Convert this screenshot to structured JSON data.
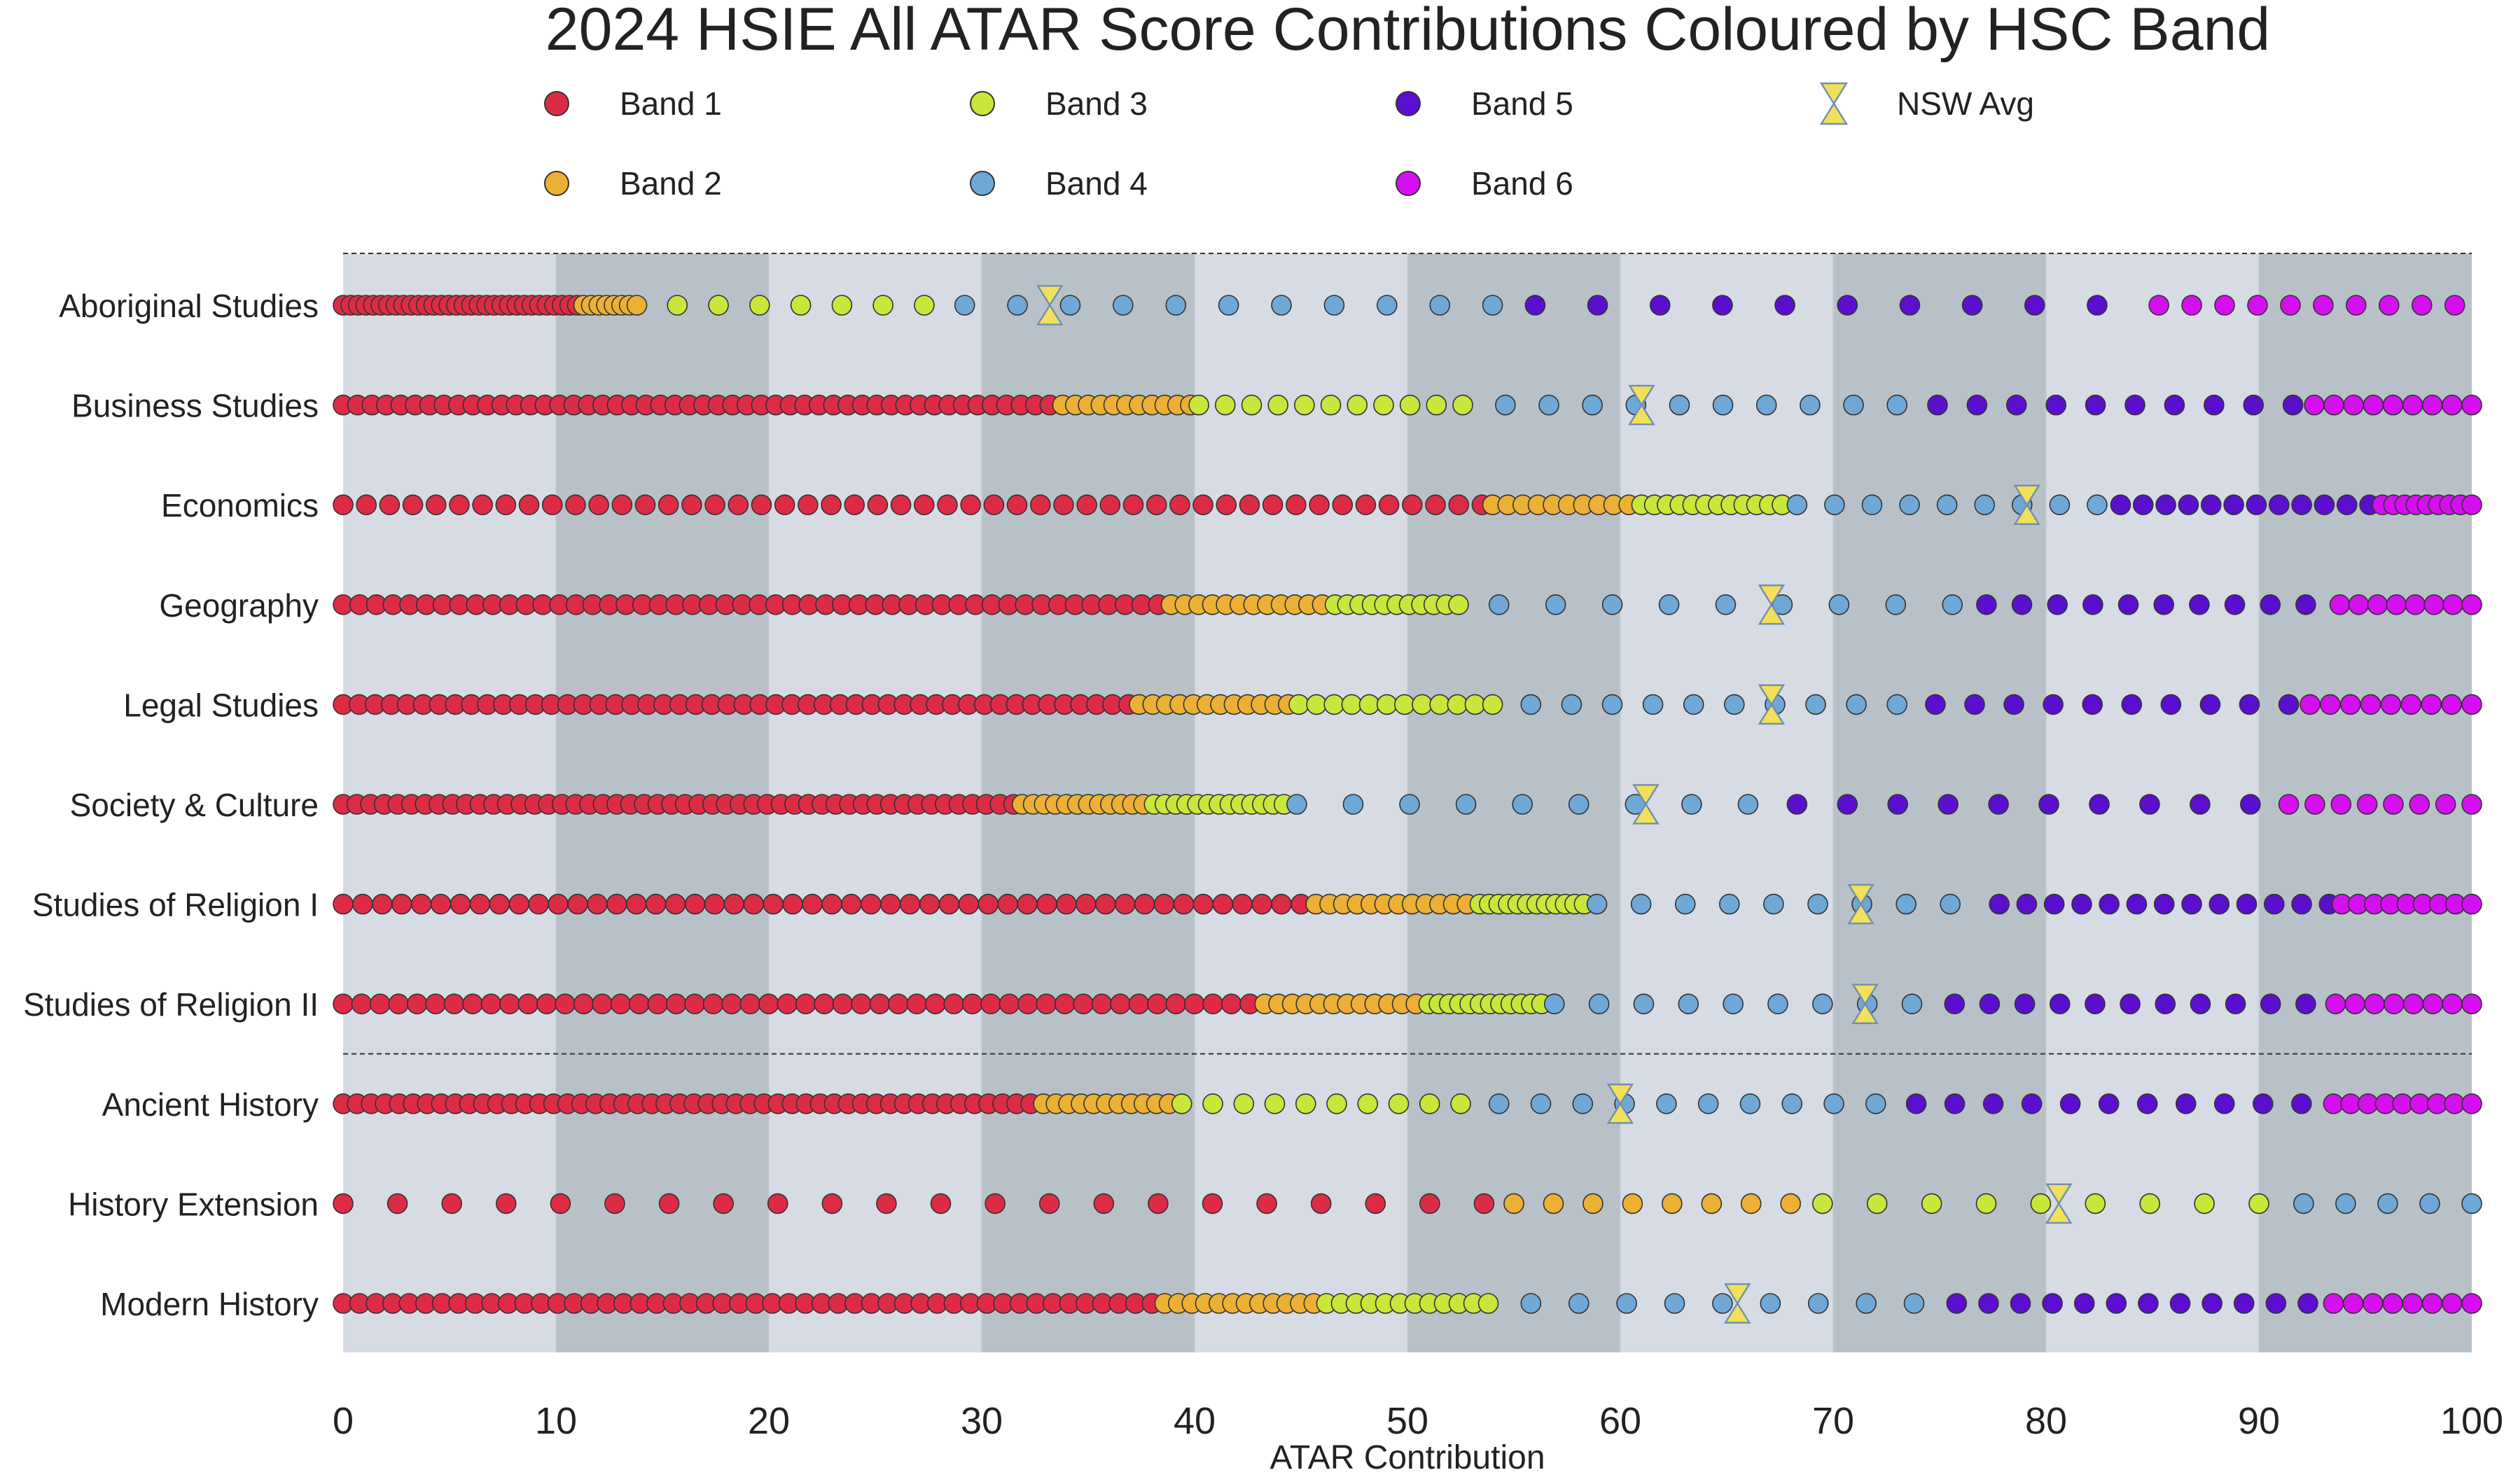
{
  "chart_data": {
    "type": "scatter",
    "title": "2024 HSIE All ATAR Score Contributions Coloured by HSC Band",
    "xlabel": "ATAR Contribution",
    "ylabel": "",
    "xlim": [
      0,
      100
    ],
    "xticks": [
      "0",
      "10",
      "20",
      "30",
      "40",
      "50",
      "60",
      "70",
      "80",
      "90",
      "100"
    ],
    "grid": "alternating vertical bands every 10 units",
    "legend_placement": "top",
    "colors": {
      "Band 1": "#de2b45",
      "Band 2": "#ecb034",
      "Band 3": "#c9e63a",
      "Band 4": "#6fa8d6",
      "Band 5": "#5a0fcf",
      "Band 6": "#d50ff0",
      "NSW Avg": "#f2e05a",
      "shade_light": "#d7dbe3",
      "shade_dark": "#b9c1c8"
    },
    "legend": [
      {
        "label": "Band 1",
        "marker": "circle",
        "color": "#de2b45"
      },
      {
        "label": "Band 3",
        "marker": "circle",
        "color": "#c9e63a"
      },
      {
        "label": "Band 5",
        "marker": "circle",
        "color": "#5a0fcf"
      },
      {
        "label": "NSW Avg",
        "marker": "hourglass",
        "color": "#f2e05a"
      },
      {
        "label": "Band 2",
        "marker": "circle",
        "color": "#ecb034"
      },
      {
        "label": "Band 4",
        "marker": "circle",
        "color": "#6fa8d6"
      },
      {
        "label": "Band 6",
        "marker": "circle",
        "color": "#d50ff0"
      }
    ],
    "group_separators_after_row": [
      -1,
      7
    ],
    "series": [
      {
        "name": "Aboriginal Studies",
        "nsw_avg": 33.2,
        "segments": [
          {
            "band": 1,
            "from": 0,
            "to": 11,
            "n": 32
          },
          {
            "band": 2,
            "from": 11.3,
            "to": 13.8,
            "n": 8
          },
          {
            "band": 3,
            "from": 15.7,
            "to": 27.3,
            "n": 7
          },
          {
            "band": 4,
            "from": 29.2,
            "to": 54.0,
            "n": 11
          },
          {
            "band": 5,
            "from": 56.0,
            "to": 82.4,
            "n": 10
          },
          {
            "band": 6,
            "from": 85.3,
            "to": 99.2,
            "n": 10
          }
        ]
      },
      {
        "name": "Business Studies",
        "nsw_avg": 61.0,
        "segments": [
          {
            "band": 1,
            "from": 0,
            "to": 33.2,
            "n": 50
          },
          {
            "band": 2,
            "from": 33.8,
            "to": 39.8,
            "n": 11
          },
          {
            "band": 3,
            "from": 40.2,
            "to": 52.6,
            "n": 11
          },
          {
            "band": 4,
            "from": 54.6,
            "to": 73.0,
            "n": 10
          },
          {
            "band": 5,
            "from": 74.9,
            "to": 91.6,
            "n": 10
          },
          {
            "band": 6,
            "from": 92.6,
            "to": 100,
            "n": 9
          }
        ]
      },
      {
        "name": "Economics",
        "nsw_avg": 79.1,
        "segments": [
          {
            "band": 1,
            "from": 0,
            "to": 53.5,
            "n": 50
          },
          {
            "band": 2,
            "from": 54.0,
            "to": 60.4,
            "n": 10
          },
          {
            "band": 3,
            "from": 61.0,
            "to": 67.6,
            "n": 12
          },
          {
            "band": 4,
            "from": 68.3,
            "to": 82.4,
            "n": 9
          },
          {
            "band": 5,
            "from": 83.5,
            "to": 95.2,
            "n": 12
          },
          {
            "band": 6,
            "from": 95.8,
            "to": 100,
            "n": 9
          }
        ]
      },
      {
        "name": "Geography",
        "nsw_avg": 67.1,
        "segments": [
          {
            "band": 1,
            "from": 0,
            "to": 38.3,
            "n": 50
          },
          {
            "band": 2,
            "from": 38.9,
            "to": 46.0,
            "n": 12
          },
          {
            "band": 3,
            "from": 46.6,
            "to": 52.4,
            "n": 11
          },
          {
            "band": 4,
            "from": 54.3,
            "to": 75.6,
            "n": 9
          },
          {
            "band": 5,
            "from": 77.2,
            "to": 92.2,
            "n": 10
          },
          {
            "band": 6,
            "from": 93.8,
            "to": 100,
            "n": 8
          }
        ]
      },
      {
        "name": "Legal Studies",
        "nsw_avg": 67.1,
        "segments": [
          {
            "band": 1,
            "from": 0,
            "to": 36.9,
            "n": 50
          },
          {
            "band": 2,
            "from": 37.4,
            "to": 44.4,
            "n": 12
          },
          {
            "band": 3,
            "from": 44.9,
            "to": 54.0,
            "n": 12
          },
          {
            "band": 4,
            "from": 55.8,
            "to": 73.0,
            "n": 10
          },
          {
            "band": 5,
            "from": 74.8,
            "to": 91.4,
            "n": 10
          },
          {
            "band": 6,
            "from": 92.4,
            "to": 100,
            "n": 9
          }
        ]
      },
      {
        "name": "Society & Culture",
        "nsw_avg": 61.2,
        "segments": [
          {
            "band": 1,
            "from": 0,
            "to": 31.5,
            "n": 50
          },
          {
            "band": 2,
            "from": 31.9,
            "to": 37.6,
            "n": 12
          },
          {
            "band": 3,
            "from": 38.1,
            "to": 44.2,
            "n": 13
          },
          {
            "band": 4,
            "from": 44.8,
            "to": 66.0,
            "n": 9
          },
          {
            "band": 5,
            "from": 68.3,
            "to": 89.6,
            "n": 10
          },
          {
            "band": 6,
            "from": 91.4,
            "to": 100,
            "n": 8
          }
        ]
      },
      {
        "name": "Studies of Religion I",
        "nsw_avg": 71.3,
        "segments": [
          {
            "band": 1,
            "from": 0,
            "to": 45.0,
            "n": 50
          },
          {
            "band": 2,
            "from": 45.7,
            "to": 52.8,
            "n": 12
          },
          {
            "band": 3,
            "from": 53.4,
            "to": 58.3,
            "n": 12
          },
          {
            "band": 4,
            "from": 58.9,
            "to": 75.5,
            "n": 9
          },
          {
            "band": 5,
            "from": 77.8,
            "to": 93.3,
            "n": 13
          },
          {
            "band": 6,
            "from": 93.9,
            "to": 100,
            "n": 9
          }
        ]
      },
      {
        "name": "Studies of Religion II",
        "nsw_avg": 71.5,
        "segments": [
          {
            "band": 1,
            "from": 0,
            "to": 42.6,
            "n": 50
          },
          {
            "band": 2,
            "from": 43.3,
            "to": 50.4,
            "n": 12
          },
          {
            "band": 3,
            "from": 51.0,
            "to": 56.3,
            "n": 12
          },
          {
            "band": 4,
            "from": 56.9,
            "to": 73.7,
            "n": 9
          },
          {
            "band": 5,
            "from": 75.7,
            "to": 92.2,
            "n": 11
          },
          {
            "band": 6,
            "from": 93.6,
            "to": 100,
            "n": 8
          }
        ]
      },
      {
        "name": "Ancient History",
        "nsw_avg": 60.0,
        "segments": [
          {
            "band": 1,
            "from": 0,
            "to": 32.3,
            "n": 50
          },
          {
            "band": 2,
            "from": 32.9,
            "to": 38.8,
            "n": 11
          },
          {
            "band": 3,
            "from": 39.4,
            "to": 52.5,
            "n": 10
          },
          {
            "band": 4,
            "from": 54.3,
            "to": 72.0,
            "n": 10
          },
          {
            "band": 5,
            "from": 73.9,
            "to": 92.0,
            "n": 11
          },
          {
            "band": 6,
            "from": 93.5,
            "to": 100,
            "n": 9
          }
        ]
      },
      {
        "name": "History Extension",
        "nsw_avg": 80.6,
        "segments": [
          {
            "band": 1,
            "from": 0,
            "to": 53.6,
            "n": 22
          },
          {
            "band": 2,
            "from": 55.0,
            "to": 68.0,
            "n": 8
          },
          {
            "band": 3,
            "from": 69.5,
            "to": 90.0,
            "n": 9
          },
          {
            "band": 4,
            "from": 92.1,
            "to": 100,
            "n": 5
          }
        ]
      },
      {
        "name": "Modern History",
        "nsw_avg": 65.5,
        "segments": [
          {
            "band": 1,
            "from": 0,
            "to": 38.0,
            "n": 50
          },
          {
            "band": 2,
            "from": 38.6,
            "to": 45.6,
            "n": 12
          },
          {
            "band": 3,
            "from": 46.2,
            "to": 53.8,
            "n": 12
          },
          {
            "band": 4,
            "from": 55.8,
            "to": 73.8,
            "n": 9
          },
          {
            "band": 5,
            "from": 75.8,
            "to": 92.3,
            "n": 12
          },
          {
            "band": 6,
            "from": 93.5,
            "to": 100,
            "n": 8
          }
        ]
      }
    ]
  }
}
